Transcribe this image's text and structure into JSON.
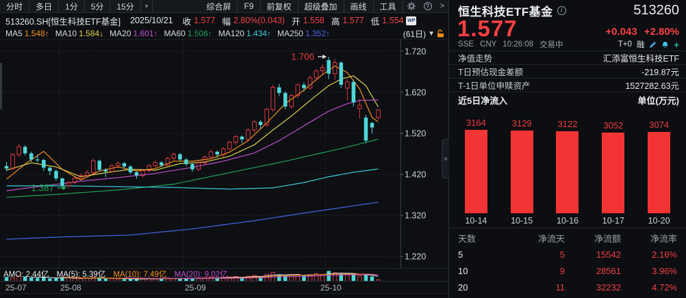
{
  "toolbar": {
    "tabs": [
      "分时",
      "多日",
      "1分",
      "5分",
      "15分"
    ],
    "menu": [
      "综合屏",
      "F9",
      "前复权",
      "超级叠加",
      "画线",
      "工具"
    ]
  },
  "info": {
    "symbol": "513260.SH[恒生科技ETF基金]",
    "date": "2025/10/21",
    "close_label": "收",
    "close": "1.577",
    "range_label": "幅",
    "range": "2.80%(0.043)",
    "open_label": "开",
    "open": "1.558",
    "high_label": "高",
    "high": "1.577",
    "low_label": "低",
    "low": "1.554",
    "wp": "WP"
  },
  "ma": {
    "items": [
      {
        "label": "MA5",
        "value": "1.548",
        "arrow": "↑"
      },
      {
        "label": "MA10",
        "value": "1.584",
        "arrow": "↓"
      },
      {
        "label": "MA20",
        "value": "1.601",
        "arrow": "↑"
      },
      {
        "label": "MA60",
        "value": "1.506",
        "arrow": "↑"
      },
      {
        "label": "MA120",
        "value": "1.434",
        "arrow": "↑"
      },
      {
        "label": "MA250",
        "value": "1.352",
        "arrow": "↑"
      }
    ],
    "period": "(61日)",
    "collapse": "▼"
  },
  "amo": {
    "amo": "AMO: 2.44亿",
    "ma5": "MA(5): 5.39亿",
    "ma10": "MA(10): 7.49亿",
    "ma20": "MA(20): 9.02亿"
  },
  "chart_data": {
    "main": {
      "type": "candlestick",
      "title": "513260.SH 恒生科技ETF基金 日K (61日)",
      "ylim": [
        1.192,
        1.748
      ],
      "y_ticks": [
        {
          "label": "1.720",
          "value": 1.72
        },
        {
          "label": "1.620",
          "value": 1.62
        },
        {
          "label": "1.520",
          "value": 1.52
        },
        {
          "label": "1.420",
          "value": 1.42
        },
        {
          "label": "1.320",
          "value": 1.32
        },
        {
          "label": "1.220",
          "value": 1.22
        }
      ],
      "x_labels": [
        {
          "label": "25-07",
          "index": 0
        },
        {
          "label": "25-08",
          "index": 9
        },
        {
          "label": "25-09",
          "index": 29
        },
        {
          "label": "25-10",
          "index": 52
        }
      ],
      "month_gridline_indices": [
        9,
        29,
        52
      ],
      "annotations": [
        {
          "text": "1.387",
          "value": 1.387,
          "index": 10,
          "color": "#2ba85a"
        },
        {
          "text": "1.706",
          "value": 1.706,
          "index": 52,
          "color": "#e23a3e"
        }
      ],
      "up_color": "#e03b40",
      "down_color": "#4fd8d8",
      "candles": [
        [
          1.44,
          1.45,
          1.428,
          1.434
        ],
        [
          1.434,
          1.472,
          1.43,
          1.468
        ],
        [
          1.468,
          1.495,
          1.462,
          1.487
        ],
        [
          1.487,
          1.491,
          1.466,
          1.471
        ],
        [
          1.471,
          1.475,
          1.45,
          1.456
        ],
        [
          1.456,
          1.468,
          1.448,
          1.455
        ],
        [
          1.455,
          1.458,
          1.428,
          1.436
        ],
        [
          1.436,
          1.44,
          1.418,
          1.428
        ],
        [
          1.428,
          1.432,
          1.404,
          1.41
        ],
        [
          1.41,
          1.412,
          1.388,
          1.392
        ],
        [
          1.392,
          1.404,
          1.387,
          1.4
        ],
        [
          1.4,
          1.414,
          1.396,
          1.41
        ],
        [
          1.41,
          1.422,
          1.406,
          1.417
        ],
        [
          1.417,
          1.43,
          1.412,
          1.424
        ],
        [
          1.424,
          1.458,
          1.42,
          1.453
        ],
        [
          1.453,
          1.456,
          1.427,
          1.431
        ],
        [
          1.431,
          1.435,
          1.413,
          1.427
        ],
        [
          1.427,
          1.445,
          1.423,
          1.441
        ],
        [
          1.441,
          1.451,
          1.435,
          1.447
        ],
        [
          1.447,
          1.45,
          1.433,
          1.439
        ],
        [
          1.439,
          1.442,
          1.421,
          1.425
        ],
        [
          1.425,
          1.428,
          1.409,
          1.417
        ],
        [
          1.417,
          1.433,
          1.413,
          1.429
        ],
        [
          1.429,
          1.445,
          1.425,
          1.441
        ],
        [
          1.441,
          1.453,
          1.437,
          1.449
        ],
        [
          1.449,
          1.452,
          1.437,
          1.442
        ],
        [
          1.442,
          1.463,
          1.439,
          1.459
        ],
        [
          1.459,
          1.473,
          1.453,
          1.469
        ],
        [
          1.469,
          1.472,
          1.451,
          1.456
        ],
        [
          1.456,
          1.459,
          1.44,
          1.445
        ],
        [
          1.445,
          1.448,
          1.426,
          1.432
        ],
        [
          1.432,
          1.452,
          1.428,
          1.448
        ],
        [
          1.448,
          1.466,
          1.444,
          1.462
        ],
        [
          1.462,
          1.48,
          1.456,
          1.475
        ],
        [
          1.475,
          1.478,
          1.46,
          1.468
        ],
        [
          1.468,
          1.486,
          1.462,
          1.482
        ],
        [
          1.482,
          1.502,
          1.478,
          1.498
        ],
        [
          1.498,
          1.516,
          1.492,
          1.512
        ],
        [
          1.512,
          1.515,
          1.496,
          1.505
        ],
        [
          1.505,
          1.532,
          1.5,
          1.528
        ],
        [
          1.528,
          1.552,
          1.522,
          1.548
        ],
        [
          1.548,
          1.552,
          1.532,
          1.54
        ],
        [
          1.54,
          1.582,
          1.536,
          1.578
        ],
        [
          1.578,
          1.638,
          1.572,
          1.632
        ],
        [
          1.632,
          1.64,
          1.61,
          1.618
        ],
        [
          1.618,
          1.622,
          1.578,
          1.585
        ],
        [
          1.585,
          1.616,
          1.58,
          1.612
        ],
        [
          1.612,
          1.642,
          1.606,
          1.638
        ],
        [
          1.638,
          1.644,
          1.622,
          1.63
        ],
        [
          1.63,
          1.66,
          1.626,
          1.655
        ],
        [
          1.655,
          1.676,
          1.648,
          1.672
        ],
        [
          1.672,
          1.688,
          1.664,
          1.68
        ],
        [
          1.698,
          1.706,
          1.652,
          1.665
        ],
        [
          1.665,
          1.7,
          1.65,
          1.692
        ],
        [
          1.692,
          1.695,
          1.63,
          1.638
        ],
        [
          1.63,
          1.652,
          1.6,
          1.645
        ],
        [
          1.645,
          1.65,
          1.585,
          1.595
        ],
        [
          1.58,
          1.603,
          1.556,
          1.588
        ],
        [
          1.558,
          1.565,
          1.496,
          1.502
        ],
        [
          1.545,
          1.548,
          1.52,
          1.534
        ],
        [
          1.558,
          1.577,
          1.554,
          1.577
        ]
      ],
      "ma_lines": [
        {
          "name": "MA5",
          "color": "#f5921e",
          "points": [
            [
              0,
              1.408
            ],
            [
              3,
              1.445
            ],
            [
              6,
              1.476
            ],
            [
              9,
              1.432
            ],
            [
              12,
              1.406
            ],
            [
              15,
              1.428
            ],
            [
              18,
              1.438
            ],
            [
              21,
              1.428
            ],
            [
              24,
              1.434
            ],
            [
              27,
              1.452
            ],
            [
              30,
              1.452
            ],
            [
              33,
              1.458
            ],
            [
              36,
              1.474
            ],
            [
              39,
              1.502
            ],
            [
              42,
              1.545
            ],
            [
              45,
              1.592
            ],
            [
              48,
              1.625
            ],
            [
              51,
              1.663
            ],
            [
              53,
              1.684
            ],
            [
              55,
              1.668
            ],
            [
              57,
              1.628
            ],
            [
              59,
              1.558
            ],
            [
              60,
              1.548
            ]
          ]
        },
        {
          "name": "MA10",
          "color": "#e2d24b",
          "points": [
            [
              0,
              1.43
            ],
            [
              4,
              1.448
            ],
            [
              8,
              1.438
            ],
            [
              12,
              1.414
            ],
            [
              16,
              1.424
            ],
            [
              20,
              1.432
            ],
            [
              24,
              1.43
            ],
            [
              28,
              1.446
            ],
            [
              32,
              1.45
            ],
            [
              36,
              1.464
            ],
            [
              40,
              1.492
            ],
            [
              43,
              1.528
            ],
            [
              46,
              1.562
            ],
            [
              49,
              1.6
            ],
            [
              52,
              1.636
            ],
            [
              54,
              1.652
            ],
            [
              56,
              1.66
            ],
            [
              58,
              1.636
            ],
            [
              60,
              1.584
            ]
          ]
        },
        {
          "name": "MA20",
          "color": "#bf4ecc",
          "points": [
            [
              0,
              1.38
            ],
            [
              6,
              1.392
            ],
            [
              12,
              1.403
            ],
            [
              18,
              1.412
            ],
            [
              24,
              1.422
            ],
            [
              30,
              1.437
            ],
            [
              35,
              1.452
            ],
            [
              40,
              1.472
            ],
            [
              44,
              1.502
            ],
            [
              48,
              1.538
            ],
            [
              52,
              1.574
            ],
            [
              55,
              1.592
            ],
            [
              57,
              1.6
            ],
            [
              60,
              1.601
            ]
          ]
        },
        {
          "name": "MA60",
          "color": "#21a05a",
          "points": [
            [
              0,
              1.364
            ],
            [
              9,
              1.372
            ],
            [
              18,
              1.382
            ],
            [
              27,
              1.396
            ],
            [
              36,
              1.424
            ],
            [
              45,
              1.452
            ],
            [
              52,
              1.476
            ],
            [
              56,
              1.49
            ],
            [
              60,
              1.506
            ]
          ]
        },
        {
          "name": "MA120",
          "color": "#3ecbdc",
          "points": [
            [
              0,
              1.392
            ],
            [
              9,
              1.392
            ],
            [
              18,
              1.39
            ],
            [
              27,
              1.388
            ],
            [
              36,
              1.384
            ],
            [
              43,
              1.387
            ],
            [
              48,
              1.4
            ],
            [
              52,
              1.414
            ],
            [
              56,
              1.425
            ],
            [
              60,
              1.433
            ]
          ]
        },
        {
          "name": "MA250",
          "color": "#4666e8",
          "points": [
            [
              0,
              1.262
            ],
            [
              10,
              1.268
            ],
            [
              20,
              1.272
            ],
            [
              30,
              1.287
            ],
            [
              40,
              1.307
            ],
            [
              50,
              1.33
            ],
            [
              60,
              1.352
            ]
          ]
        }
      ]
    },
    "volume": {
      "type": "bar",
      "unit": "亿",
      "values": [
        6.2,
        5.1,
        7.3,
        6.8,
        5.5,
        4.8,
        5.9,
        4.2,
        4.6,
        5.8,
        4.9,
        4.1,
        3.8,
        4.3,
        5.6,
        5.2,
        3.9,
        4.0,
        3.6,
        3.4,
        3.8,
        3.5,
        3.7,
        4.1,
        3.6,
        4.4,
        4.8,
        4.2,
        3.9,
        4.5,
        4.1,
        4.7,
        5.2,
        5.8,
        4.9,
        5.4,
        6.2,
        6.8,
        5.7,
        7.1,
        8.2,
        6.5,
        9.8,
        12.4,
        8.9,
        7.6,
        8.4,
        9.6,
        7.8,
        9.2,
        10.5,
        9.4,
        14.2,
        11.8,
        10.6,
        9.2,
        8.8,
        7.4,
        9.6,
        6.8,
        2.44
      ],
      "ma_colors": {
        "ma5": "#e8e8e8",
        "ma10": "#f5921e",
        "ma20": "#bf4ecc"
      }
    },
    "flow": {
      "type": "bar",
      "title": "近5日净流入",
      "unit": "单位(万元)",
      "categories": [
        "10-14",
        "10-15",
        "10-16",
        "10-17",
        "10-20"
      ],
      "values": [
        3164,
        3129,
        3122,
        3052,
        3074
      ],
      "bar_color": "#f23434"
    }
  },
  "panel": {
    "name": "恒生科技ETF基金",
    "code": "513260",
    "price": "1.577",
    "change": "+0.043",
    "change_pct": "+2.80%",
    "exchange": "SSE",
    "currency": "CNY",
    "time": "10:26:08",
    "status": "交易中",
    "t0": "T+0",
    "margin": "融",
    "rows": [
      {
        "label": "净值走势",
        "value": "汇添富恒生科技ETF"
      },
      {
        "label": "T日预估现金差额",
        "value": "-219.87元"
      },
      {
        "label": "T-1日单位申赎资产",
        "value": "1527282.63元"
      }
    ],
    "table": {
      "headers": [
        "天数",
        "净流天",
        "净流额",
        "净流率"
      ],
      "rows": [
        [
          "5",
          "5",
          "15542",
          "2.16%"
        ],
        [
          "10",
          "9",
          "28561",
          "3.96%"
        ],
        [
          "20",
          "11",
          "32232",
          "4.72%"
        ]
      ]
    }
  }
}
